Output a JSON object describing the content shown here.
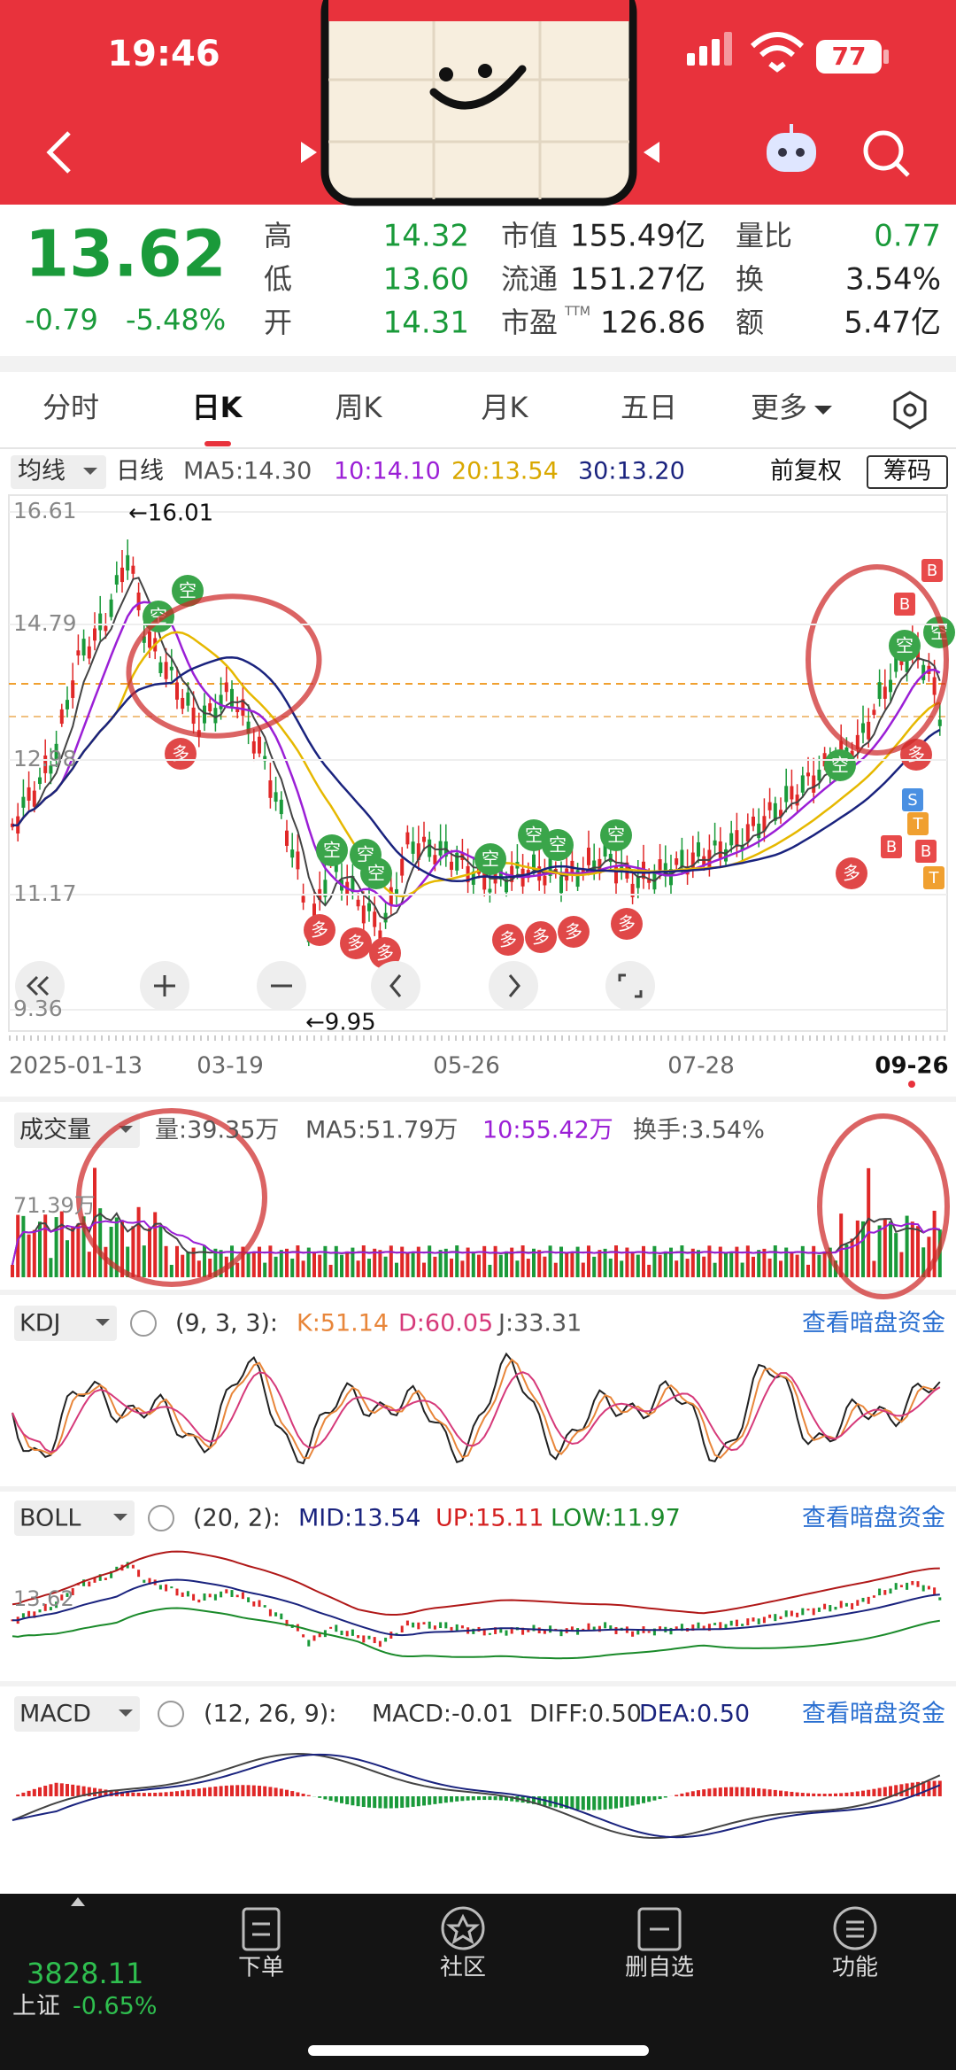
{
  "status_bar": {
    "time": "19:46",
    "battery": "77"
  },
  "quote": {
    "price": "13.62",
    "change": "-0.79",
    "change_percent": "-5.48%",
    "stats": [
      [
        "高",
        "14.32"
      ],
      [
        "低",
        "13.60"
      ],
      [
        "开",
        "14.31"
      ],
      [
        "市值",
        "155.49亿"
      ],
      [
        "流通",
        "151.27亿"
      ],
      [
        "市盈",
        "126.86"
      ],
      [
        "量比",
        "0.77"
      ],
      [
        "换",
        "3.54%"
      ],
      [
        "额",
        "5.47亿"
      ]
    ],
    "pe_suffix": "TTM"
  },
  "tabs": [
    "分时",
    "日K",
    "周K",
    "月K",
    "五日",
    "更多"
  ],
  "ma_bar": {
    "selector": "均线",
    "period": "日线",
    "ma5": "MA5:14.30",
    "ma10": "10:14.10",
    "ma20": "20:13.54",
    "ma30": "30:13.20",
    "adjust": "前复权",
    "chips": "筹码"
  },
  "price_chart": {
    "y_labels": [
      "16.61",
      "14.79",
      "12.98",
      "11.17",
      "9.36"
    ],
    "high_note": "←16.01",
    "low_note": "←9.95",
    "dates": [
      "2025-01-13",
      "03-19",
      "05-26",
      "07-28",
      "09-26"
    ],
    "signals": [
      "空",
      "空",
      "多",
      "空",
      "空",
      "空",
      "多",
      "多",
      "多",
      "空",
      "空",
      "空",
      "空",
      "多",
      "多",
      "多",
      "多",
      "空",
      "多",
      "空",
      "空",
      "多",
      "B",
      "B",
      "S",
      "T",
      "B",
      "B",
      "T"
    ]
  },
  "volume": {
    "title": "成交量",
    "volume": "量:39.35万",
    "ma5": "MA5:51.79万",
    "ma10": "10:55.42万",
    "turnover": "换手:3.54%",
    "axis_label": "71.39万"
  },
  "kdj": {
    "title": "KDJ",
    "params": "(9, 3, 3):",
    "k": "K:51.14",
    "d": "D:60.05",
    "j": "J:33.31",
    "link": "查看暗盘资金"
  },
  "boll": {
    "title": "BOLL",
    "params": "(20, 2):",
    "mid": "MID:13.54",
    "up": "UP:15.11",
    "low": "LOW:11.97",
    "link": "查看暗盘资金",
    "axis_label": "13.62"
  },
  "macd": {
    "title": "MACD",
    "params": "(12, 26, 9):",
    "macd": "MACD:-0.01",
    "diff": "DIFF:0.50",
    "dea": "DEA:0.50",
    "link": "查看暗盘资金"
  },
  "bottom_bar": {
    "index_value": "3828.11",
    "index_name": "上证",
    "index_change": "-0.65%",
    "items": [
      "下单",
      "社区",
      "删自选",
      "功能"
    ]
  }
}
